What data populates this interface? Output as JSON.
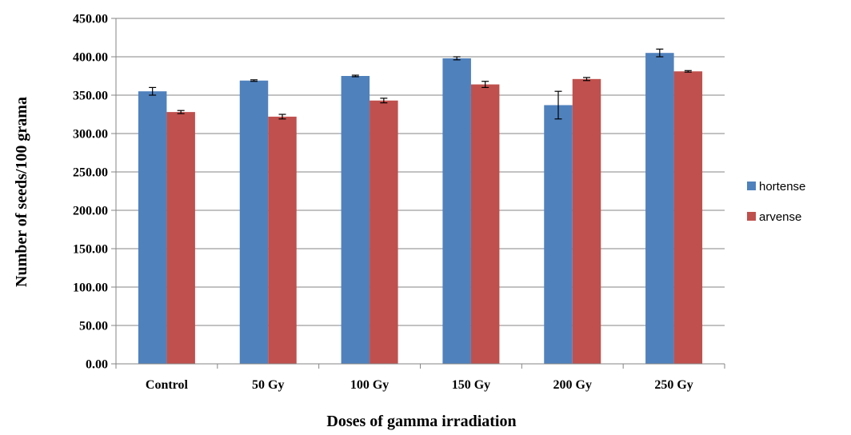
{
  "chart_data": {
    "type": "bar",
    "title": "",
    "xlabel": "Doses of gamma irradiation",
    "ylabel": "Number of seeds/100 grama",
    "ylim": [
      0,
      450
    ],
    "ytick_step": 50,
    "ytick_format_decimals": 2,
    "grid": true,
    "legend_position": "right",
    "categories": [
      "Control",
      "50 Gy",
      "100 Gy",
      "150 Gy",
      "200 Gy",
      "250 Gy"
    ],
    "series": [
      {
        "name": "hortense",
        "color": "#4F81BD",
        "values": [
          355,
          369,
          375,
          398,
          337,
          405
        ],
        "errors": [
          5,
          1,
          1,
          2,
          18,
          5
        ]
      },
      {
        "name": "arvense",
        "color": "#C0504D",
        "values": [
          328,
          322,
          343,
          364,
          371,
          381
        ],
        "errors": [
          2,
          3,
          3,
          4,
          2,
          1
        ]
      }
    ]
  }
}
